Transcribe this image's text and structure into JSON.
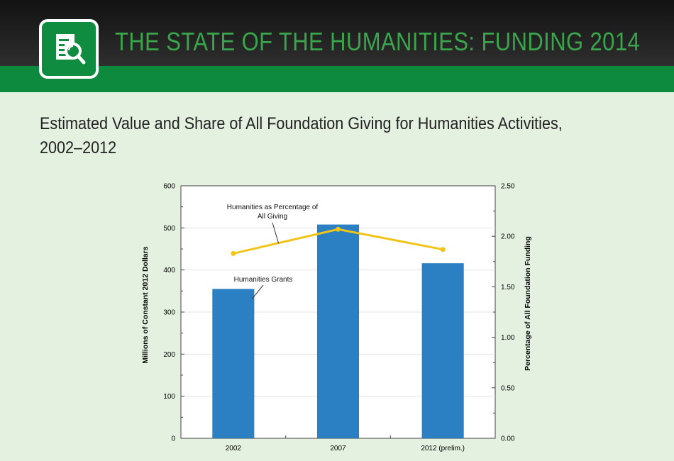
{
  "header": {
    "title": "THE STATE OF THE HUMANITIES: FUNDING 2014",
    "icon": "magnifier-document-icon",
    "colors": {
      "header_bg": "#1e1e1e",
      "accent_green": "#0e8a3e",
      "title_green": "#3aa64c"
    }
  },
  "subtitle": "Estimated Value and Share of All Foundation Giving for Humanities Activities, 2002–2012",
  "chart_data": {
    "type": "bar",
    "categories": [
      "2002",
      "2007",
      "2012 (prelim.)"
    ],
    "series": [
      {
        "name": "Humanities Grants",
        "type": "bar",
        "axis": "left",
        "values": [
          355,
          508,
          416
        ],
        "color": "#2b80c4"
      },
      {
        "name": "Humanities as Percentage of All Giving",
        "type": "line",
        "axis": "right",
        "values": [
          1.83,
          2.07,
          1.87
        ],
        "color": "#f0c419"
      }
    ],
    "ylabel": "Millions of Constant 2012 Dollars",
    "y2label": "Percentage of All Foundation Funding",
    "ylim": [
      0,
      600
    ],
    "y2lim": [
      0,
      2.5
    ],
    "yticks": [
      "0",
      "100",
      "200",
      "300",
      "400",
      "500",
      "600"
    ],
    "y2ticks": [
      "0.00",
      "0.50",
      "1.00",
      "1.50",
      "2.00",
      "2.50"
    ],
    "annotations": [
      {
        "text": [
          "Humanities as Percentage of",
          "All Giving"
        ],
        "target": "line"
      },
      {
        "text": [
          "Humanities Grants"
        ],
        "target": "bar"
      }
    ],
    "grid": true
  }
}
